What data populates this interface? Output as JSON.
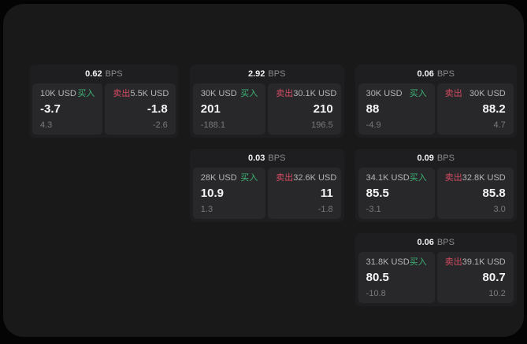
{
  "page": {
    "bps_unit": "BPS",
    "buy_label": "买入",
    "sell_label": "卖出"
  },
  "colors": {
    "canvas": "#040404",
    "surface": "#19191a",
    "card": "#1e1e20",
    "panel": "#28282b",
    "buy_green": "#3eb273",
    "sell_red": "#d24b60",
    "text_primary": "#f2f2f2",
    "text_secondary": "#b5b5b5",
    "text_dim": "#7a7a7a"
  },
  "cards": [
    {
      "bps": "0.62",
      "buy": {
        "amount": "10K USD",
        "value": "-3.7",
        "delta": "4.3"
      },
      "sell": {
        "amount": "5.5K USD",
        "value": "-1.8",
        "delta": "-2.6"
      }
    },
    {
      "bps": "2.92",
      "buy": {
        "amount": "30K USD",
        "value": "201",
        "delta": "-188.1"
      },
      "sell": {
        "amount": "30.1K USD",
        "value": "210",
        "delta": "196.5"
      }
    },
    {
      "bps": "0.06",
      "buy": {
        "amount": "30K USD",
        "value": "88",
        "delta": "-4.9"
      },
      "sell": {
        "amount": "30K USD",
        "value": "88.2",
        "delta": "4.7"
      }
    },
    {
      "bps": "0.03",
      "buy": {
        "amount": "28K USD",
        "value": "10.9",
        "delta": "1.3"
      },
      "sell": {
        "amount": "32.6K USD",
        "value": "11",
        "delta": "-1.8"
      }
    },
    {
      "bps": "0.09",
      "buy": {
        "amount": "34.1K USD",
        "value": "85.5",
        "delta": "-3.1"
      },
      "sell": {
        "amount": "32.8K USD",
        "value": "85.8",
        "delta": "3.0"
      }
    },
    {
      "bps": "0.06",
      "buy": {
        "amount": "31.8K USD",
        "value": "80.5",
        "delta": "-10.8"
      },
      "sell": {
        "amount": "39.1K USD",
        "value": "80.7",
        "delta": "10.2"
      }
    }
  ]
}
